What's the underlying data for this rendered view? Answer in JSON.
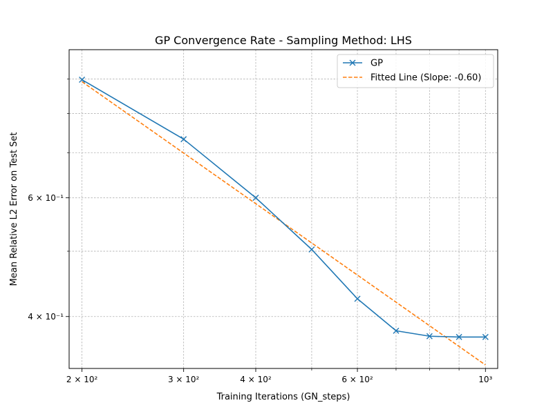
{
  "chart_data": {
    "type": "line",
    "title": "GP Convergence Rate - Sampling Method: LHS",
    "xlabel": "Training Iterations (GN_steps)",
    "ylabel": "Mean Relative L2 Error on Test Set",
    "xscale": "log",
    "yscale": "log",
    "xlim": [
      190,
      1050
    ],
    "ylim": [
      0.335,
      0.995
    ],
    "grid": true,
    "legend_position": "top-right",
    "x_ticks": [
      {
        "value": 200,
        "label": "2 × 10²"
      },
      {
        "value": 300,
        "label": "3 × 10²"
      },
      {
        "value": 400,
        "label": "4 × 10²"
      },
      {
        "value": 600,
        "label": "6 × 10²"
      },
      {
        "value": 1000,
        "label": "10³"
      }
    ],
    "x_minor_ticks": [
      500,
      700,
      800,
      900
    ],
    "y_ticks": [
      {
        "value": 0.4,
        "label": "4 × 10⁻¹"
      },
      {
        "value": 0.6,
        "label": "6 × 10⁻¹"
      }
    ],
    "y_minor_ticks": [
      0.5,
      0.7,
      0.8,
      0.9
    ],
    "series": [
      {
        "name": "GP",
        "color": "#1f77b4",
        "style": "solid",
        "marker": "x",
        "x": [
          200,
          300,
          400,
          500,
          600,
          700,
          800,
          900,
          1000
        ],
        "y": [
          0.898,
          0.733,
          0.6,
          0.503,
          0.425,
          0.381,
          0.374,
          0.373,
          0.373
        ]
      },
      {
        "name": "Fitted Line (Slope: -0.60)",
        "color": "#ff7f0e",
        "style": "dashed",
        "marker": "none",
        "x": [
          200,
          1000
        ],
        "y": [
          0.892,
          0.339
        ]
      }
    ]
  }
}
